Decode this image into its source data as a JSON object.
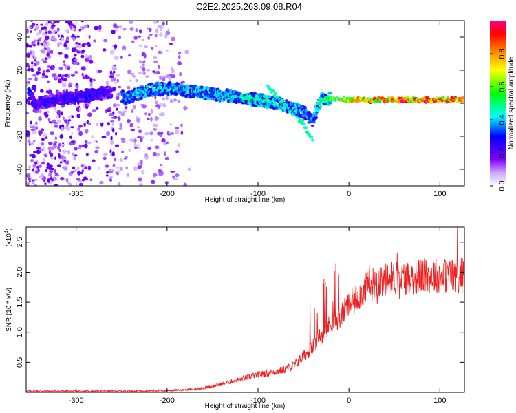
{
  "title": "C2E2.2025.263.09.08.R04",
  "chart_data": [
    {
      "type": "heatmap",
      "xlabel": "Height of straight line (km)",
      "ylabel": "Frequency (Hz)",
      "xlim": [
        -355,
        127
      ],
      "ylim": [
        -50,
        50
      ],
      "xticks": [
        -300,
        -200,
        -100,
        0,
        100
      ],
      "yticks": [
        -40,
        -20,
        0,
        20,
        40
      ],
      "colorbar": {
        "label": "Normalized spectral amplitude",
        "range": [
          0,
          1
        ],
        "ticks": [
          0.0,
          0.2,
          0.4,
          0.6,
          0.8
        ],
        "tick_labels": [
          "0.0",
          "0.2",
          "0.4",
          "0.6",
          "0.8"
        ],
        "colormap": [
          "#ffffff",
          "#8000ff",
          "#0000ff",
          "#00ffff",
          "#00ff00",
          "#ffff00",
          "#ff8000",
          "#ff0000",
          "#ff00ff"
        ]
      },
      "ridge": {
        "x": [
          -355,
          -345,
          -260,
          -245,
          -220,
          -200,
          -170,
          -140,
          -110,
          -80,
          -60,
          -50,
          -40,
          -30,
          0,
          60,
          127
        ],
        "y": [
          8,
          0,
          7,
          3,
          8,
          9,
          7,
          5,
          3,
          0,
          -3,
          -5,
          -10,
          3,
          2,
          2,
          2
        ],
        "amplitude": [
          0.35,
          0.3,
          0.3,
          0.4,
          0.45,
          0.45,
          0.45,
          0.45,
          0.5,
          0.5,
          0.45,
          0.4,
          0.4,
          0.5,
          0.8,
          0.95,
          0.95
        ]
      }
    },
    {
      "type": "line",
      "xlabel": "Height of straight line (km)",
      "ylabel": "SNR (10 * v/v)",
      "y_multiplier": "(x10",
      "y_multiplier_exp": "4",
      "y_multiplier_close": ")",
      "xlim": [
        -355,
        127
      ],
      "ylim": [
        0,
        2.75
      ],
      "xticks": [
        -300,
        -200,
        -100,
        0,
        100
      ],
      "yticks": [
        0.5,
        1.0,
        1.5,
        2.0,
        2.5
      ],
      "ytick_labels": [
        "0.5",
        "1.0",
        "1.5",
        "2.0",
        "2.5"
      ],
      "color": "#ee2222",
      "series": [
        {
          "x": [
            -355,
            -300,
            -250,
            -200,
            -170,
            -150,
            -120,
            -100,
            -90,
            -80,
            -70,
            -60,
            -50,
            -40,
            -30,
            -20,
            -10,
            0,
            10,
            20,
            30,
            40,
            50,
            60,
            70,
            80,
            90,
            100,
            110,
            127
          ],
          "y": [
            0.02,
            0.02,
            0.02,
            0.03,
            0.05,
            0.1,
            0.22,
            0.3,
            0.32,
            0.35,
            0.38,
            0.45,
            0.6,
            0.75,
            0.95,
            1.15,
            1.25,
            1.45,
            1.6,
            1.75,
            1.85,
            1.88,
            1.9,
            1.9,
            1.92,
            1.93,
            1.95,
            1.95,
            1.95,
            1.95
          ]
        }
      ]
    }
  ]
}
